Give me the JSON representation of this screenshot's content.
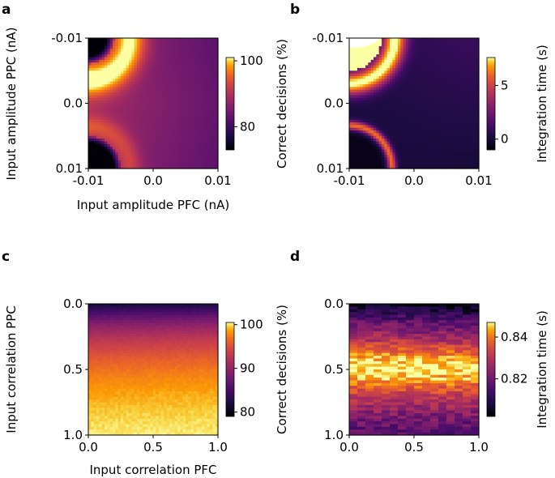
{
  "figure": {
    "panel_letters": [
      "a",
      "b",
      "c",
      "d"
    ]
  },
  "colormap": "inferno",
  "chart_data": [
    {
      "panel": "a",
      "type": "heatmap",
      "title": "",
      "xlabel": "Input amplitude PFC (nA)",
      "ylabel": "Input amplitude PPC (nA)",
      "x_range": [
        -0.01,
        0.01
      ],
      "y_range": [
        -0.01,
        0.01
      ],
      "y_inverted": true,
      "x_ticks": [
        -0.01,
        0.0,
        0.01
      ],
      "y_ticks": [
        -0.01,
        0.0,
        0.01
      ],
      "x_tick_labels": [
        "-0.01",
        "0.0",
        "0.01"
      ],
      "y_tick_labels": [
        "-0.01",
        "0.0",
        "0.01"
      ],
      "colorbar": {
        "label": "Correct decisions (%)",
        "range": [
          73,
          101
        ],
        "ticks": [
          80,
          100
        ],
        "tick_labels": [
          "80",
          "100"
        ]
      },
      "pattern": "amplitude_decisions"
    },
    {
      "panel": "b",
      "type": "heatmap",
      "title": "",
      "xlabel": "",
      "ylabel": "",
      "x_range": [
        -0.01,
        0.01
      ],
      "y_range": [
        -0.01,
        0.01
      ],
      "y_inverted": true,
      "x_ticks": [
        -0.01,
        0.0,
        0.01
      ],
      "y_ticks": [
        -0.01,
        0.0,
        0.01
      ],
      "x_tick_labels": [
        "-0.01",
        "0.0",
        "0.01"
      ],
      "y_tick_labels": [
        "-0.01",
        "0.0",
        "0.01"
      ],
      "colorbar": {
        "label": "Integration time (s)",
        "range": [
          -1.0,
          7.6
        ],
        "ticks": [
          0,
          5
        ],
        "tick_labels": [
          "0",
          "5"
        ]
      },
      "pattern": "amplitude_integration"
    },
    {
      "panel": "c",
      "type": "heatmap",
      "title": "",
      "xlabel": "Input correlation PFC",
      "ylabel": "Input correlation PPC",
      "x_range": [
        0.0,
        1.0
      ],
      "y_range": [
        0.0,
        1.0
      ],
      "y_inverted": true,
      "x_ticks": [
        0.0,
        0.5,
        1.0
      ],
      "y_ticks": [
        0.0,
        0.5,
        1.0
      ],
      "x_tick_labels": [
        "0.0",
        "0.5",
        "1.0"
      ],
      "y_tick_labels": [
        "0.0",
        "0.5",
        "1.0"
      ],
      "colorbar": {
        "label": "Correct decisions (%)",
        "range": [
          79,
          100.5
        ],
        "ticks": [
          80,
          90,
          100
        ],
        "tick_labels": [
          "80",
          "90",
          "100"
        ]
      },
      "pattern": "correlation_decisions"
    },
    {
      "panel": "d",
      "type": "heatmap",
      "title": "",
      "xlabel": "",
      "ylabel": "",
      "x_range": [
        0.0,
        1.0
      ],
      "y_range": [
        0.0,
        1.0
      ],
      "y_inverted": true,
      "x_ticks": [
        0.0,
        0.5,
        1.0
      ],
      "y_ticks": [
        0.0,
        0.5,
        1.0
      ],
      "x_tick_labels": [
        "0.0",
        "0.5",
        "1.0"
      ],
      "y_tick_labels": [
        "0.0",
        "0.5",
        "1.0"
      ],
      "colorbar": {
        "label": "Integration time (s)",
        "range": [
          0.802,
          0.847
        ],
        "ticks": [
          0.82,
          0.84
        ],
        "tick_labels": [
          "0.82",
          "0.84"
        ]
      },
      "pattern": "correlation_integration"
    }
  ]
}
